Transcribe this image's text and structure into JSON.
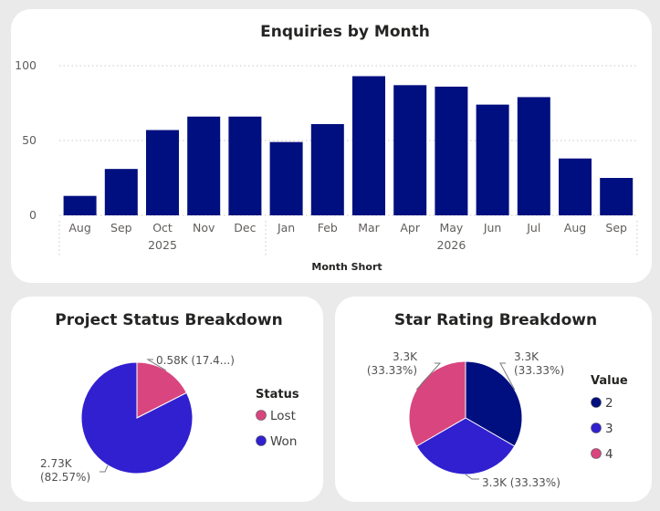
{
  "chart_data": [
    {
      "type": "bar",
      "title": "Enquiries by Month",
      "xlabel": "Month Short",
      "ylabel": "",
      "ylim": [
        0,
        100
      ],
      "yticks": [
        0,
        50,
        100
      ],
      "grid": true,
      "color": "#000F7F",
      "categories": [
        "Aug",
        "Sep",
        "Oct",
        "Nov",
        "Dec",
        "Jan",
        "Feb",
        "Mar",
        "Apr",
        "May",
        "Jun",
        "Jul",
        "Aug",
        "Sep"
      ],
      "values": [
        13,
        31,
        57,
        66,
        66,
        49,
        61,
        93,
        87,
        86,
        74,
        79,
        38,
        25
      ],
      "year_groups": [
        {
          "label": "2025",
          "start": 0,
          "end": 4
        },
        {
          "label": "2026",
          "start": 5,
          "end": 13
        }
      ]
    },
    {
      "type": "pie",
      "title": "Project Status Breakdown",
      "legend_title": "Status",
      "legend_position": "right",
      "slices": [
        {
          "name": "Lost",
          "value": 0.58,
          "label_line1": "0.58K (17.4...)",
          "label_line2": "",
          "color": "#D9457F"
        },
        {
          "name": "Won",
          "value": 2.73,
          "label_line1": "2.73K",
          "label_line2": "(82.57%)",
          "color": "#3120D0"
        }
      ]
    },
    {
      "type": "pie",
      "title": "Star Rating Breakdown",
      "legend_title": "Value",
      "legend_position": "right",
      "slices": [
        {
          "name": "2",
          "value": 3.3,
          "label_line1": "3.3K",
          "label_line2": "(33.33%)",
          "color": "#000F7F"
        },
        {
          "name": "3",
          "value": 3.3,
          "label_line1": "3.3K (33.33%)",
          "label_line2": "",
          "color": "#3120D0"
        },
        {
          "name": "4",
          "value": 3.3,
          "label_line1": "3.3K",
          "label_line2": "(33.33%)",
          "color": "#D9457F"
        }
      ]
    }
  ]
}
